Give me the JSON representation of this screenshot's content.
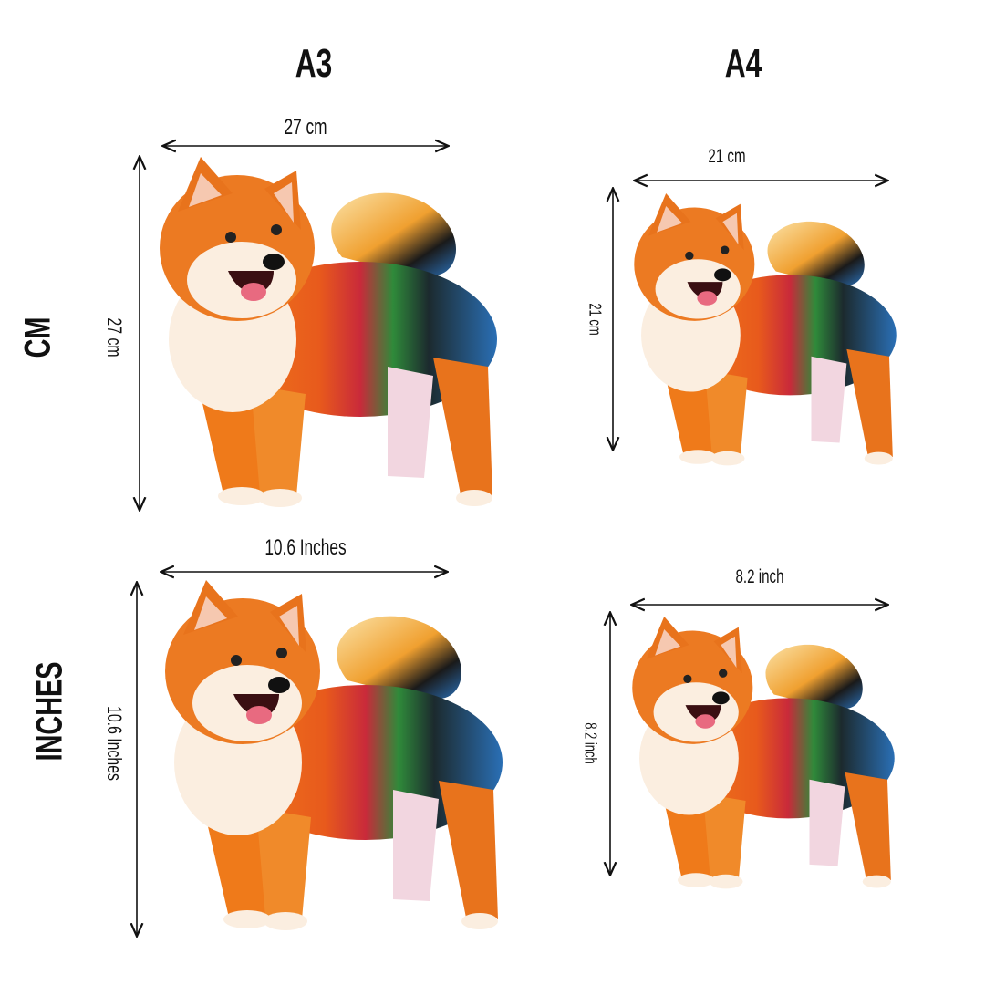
{
  "columns": {
    "a3": "A3",
    "a4": "A4"
  },
  "rows": {
    "cm": "CM",
    "inches": "INCHES"
  },
  "a3_cm": {
    "width_label": "27 cm",
    "height_label": "27 cm"
  },
  "a4_cm": {
    "width_label": "21 cm",
    "height_label": "21 cm"
  },
  "a3_inches": {
    "width_label": "10.6  Inches",
    "height_label": "10.6 Inches"
  },
  "a4_inches": {
    "width_label": "8.2 inch",
    "height_label": "8.2 inch"
  },
  "colors": {
    "fur_orange": "#e8731c",
    "fur_white": "#fbeee0",
    "tail_blue": "#2a6fb5",
    "text": "#111111"
  }
}
